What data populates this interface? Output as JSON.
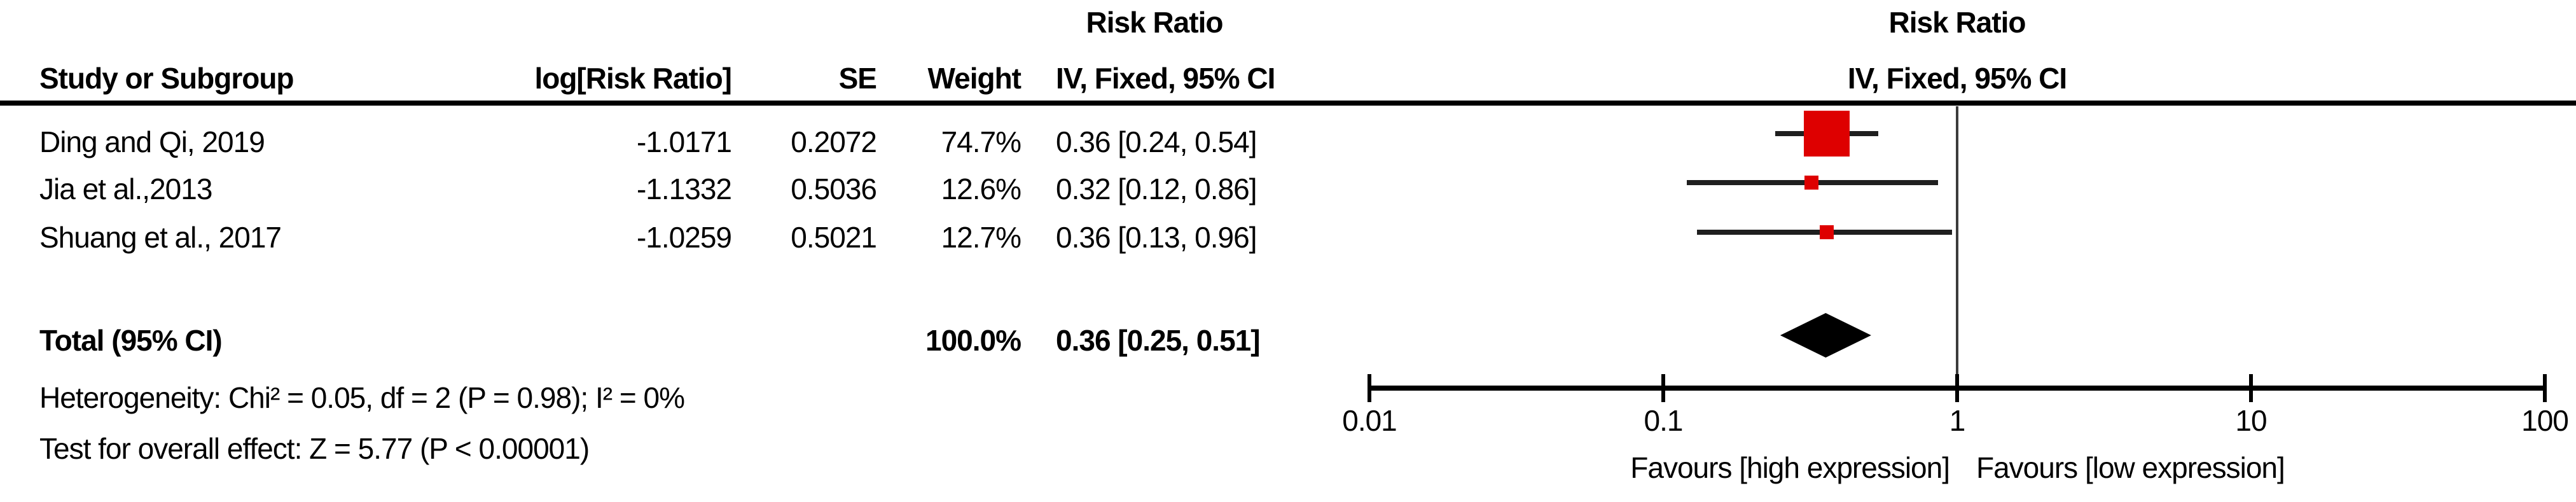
{
  "header": {
    "col_study": "Study or Subgroup",
    "col_log_rr": "log[Risk Ratio]",
    "col_se": "SE",
    "col_weight": "Weight",
    "col_ci": "IV, Fixed, 95% CI",
    "effect_title_left": "Risk Ratio",
    "graph_effect_title": "Risk Ratio",
    "graph_method_subtitle": "IV, Fixed, 95% CI"
  },
  "table": {
    "rows": [
      {
        "study": "Ding and Qi, 2019",
        "log_rr": "-1.0171",
        "se": "0.2072",
        "weight": "74.7%",
        "ci_text": "0.36 [0.24, 0.54]"
      },
      {
        "study": "Jia et al.,2013",
        "log_rr": "-1.1332",
        "se": "0.5036",
        "weight": "12.6%",
        "ci_text": "0.32 [0.12, 0.86]"
      },
      {
        "study": "Shuang et al., 2017",
        "log_rr": "-1.0259",
        "se": "0.5021",
        "weight": "12.7%",
        "ci_text": "0.36 [0.13, 0.96]"
      }
    ],
    "total": {
      "label": "Total (95% CI)",
      "weight": "100.0%",
      "ci_text": "0.36 [0.25, 0.51]"
    },
    "footnotes": {
      "heterogeneity": "Heterogeneity: Chi² = 0.05, df = 2 (P = 0.98); I² = 0%",
      "overall_effect": "Test for overall effect: Z = 5.77 (P < 0.00001)"
    }
  },
  "chart_data": {
    "type": "forest",
    "effect_measure": "Risk Ratio",
    "model": "IV, Fixed, 95% CI",
    "x_scale": "log10",
    "xlim": [
      0.01,
      100
    ],
    "null_line": 1,
    "axis_ticks": [
      0.01,
      0.1,
      1,
      10,
      100
    ],
    "tick_labels": [
      "0.01",
      "0.1",
      "1",
      "10",
      "100"
    ],
    "xlabel_left": "Favours [high expression]",
    "xlabel_right": "Favours [low expression]",
    "studies": [
      {
        "name": "Ding and Qi, 2019",
        "rr": 0.36,
        "ci_low": 0.24,
        "ci_high": 0.54,
        "weight_pct": 74.7
      },
      {
        "name": "Jia et al.,2013",
        "rr": 0.32,
        "ci_low": 0.12,
        "ci_high": 0.86,
        "weight_pct": 12.6
      },
      {
        "name": "Shuang et al., 2017",
        "rr": 0.36,
        "ci_low": 0.13,
        "ci_high": 0.96,
        "weight_pct": 12.7
      }
    ],
    "total": {
      "rr": 0.36,
      "ci_low": 0.25,
      "ci_high": 0.51,
      "weight_pct": 100.0
    },
    "heterogeneity": {
      "chi2": 0.05,
      "df": 2,
      "p": 0.98,
      "i2_pct": 0
    },
    "overall_effect": {
      "z": 5.77,
      "p": "< 0.00001"
    },
    "colors": {
      "marker_red": "#de0000",
      "diamond_black": "#000000",
      "axis_black": "#000000",
      "whisker": "#1f1f1f",
      "null_line_gray": "#3c3c3c"
    }
  }
}
